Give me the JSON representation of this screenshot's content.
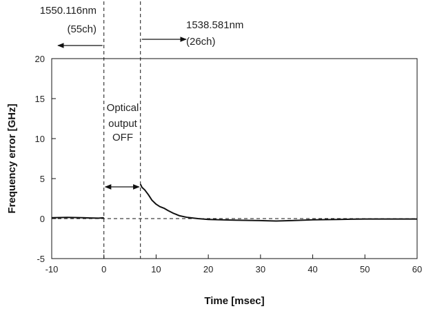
{
  "chart_data": {
    "type": "line",
    "title": "",
    "xlabel": "Time [msec]",
    "ylabel": "Frequency error [GHz]",
    "xlim": [
      -10,
      60
    ],
    "ylim": [
      -5,
      20
    ],
    "xticks": [
      -10,
      0,
      10,
      20,
      30,
      40,
      50,
      60
    ],
    "yticks": [
      -5,
      0,
      5,
      10,
      15,
      20
    ],
    "grid": false,
    "series": [
      {
        "name": "",
        "segments": [
          {
            "x": [
              -10,
              -7,
              -4,
              -1,
              0
            ],
            "y": [
              0.1,
              0.15,
              0.1,
              0.05,
              0.1
            ]
          },
          {
            "x": [
              7.0,
              7.3,
              7.8,
              8.5,
              9.2,
              10.0,
              10.7,
              11.5,
              12.3,
              13.2,
              14.5,
              16.0,
              18.0,
              20.0,
              25.0,
              30.0,
              33.0,
              36.0,
              40.0,
              45.0,
              50.0,
              55.0,
              60.0
            ],
            "y": [
              4.3,
              3.9,
              3.6,
              3.0,
              2.3,
              1.8,
              1.5,
              1.3,
              1.0,
              0.7,
              0.35,
              0.15,
              0.0,
              -0.1,
              -0.2,
              -0.25,
              -0.3,
              -0.25,
              -0.15,
              -0.1,
              -0.05,
              -0.05,
              -0.05
            ]
          }
        ]
      }
    ],
    "reference_lines": {
      "vertical_dashed_x": [
        0,
        7
      ],
      "horizontal_dashed_y": [
        0
      ]
    },
    "annotations": {
      "left_wavelength": "1550.116nm",
      "left_channel": "(55ch)",
      "right_wavelength": "1538.581nm",
      "right_channel": "(26ch)",
      "off_line1": "Optical",
      "off_line2": "output",
      "off_line3": "OFF"
    },
    "line_color": "#111111"
  }
}
